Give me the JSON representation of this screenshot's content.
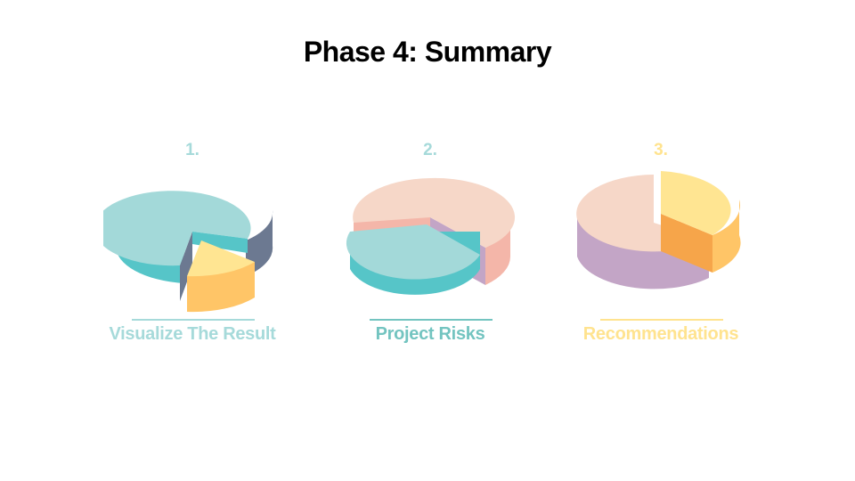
{
  "slide": {
    "title": "Phase 4: Summary"
  },
  "colors": {
    "teal_light": "#a3d9d9",
    "teal": "#56c5c8",
    "slate": "#6c7991",
    "yellow_light": "#ffe592",
    "orange": "#ffc567",
    "orange_dark": "#f6a54a",
    "peach": "#f6d7c8",
    "salmon": "#f4b6a9",
    "lavender": "#c3a5c6",
    "lavender_dark": "#c9a8cf",
    "label_teal": "#a6dada",
    "label_teal_dark": "#73c4c0",
    "label_yellow": "#ffe38f"
  },
  "cards": [
    {
      "number": "1.",
      "label": "Visualize The Result",
      "icon": "exploded-pie-chart-icon"
    },
    {
      "number": "2.",
      "label": "Project Risks",
      "icon": "exploded-pie-chart-icon"
    },
    {
      "number": "3.",
      "label": "Recommendations",
      "icon": "exploded-pie-chart-icon"
    }
  ]
}
